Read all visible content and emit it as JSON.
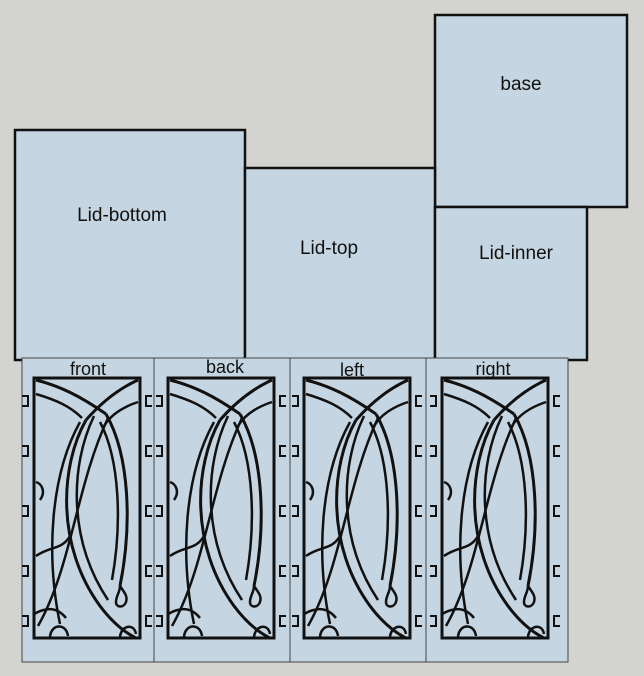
{
  "colors": {
    "background": "#d3d3cf",
    "panel_fill": "#c5d6e2",
    "outline": "#111111"
  },
  "panels": {
    "base": "base",
    "lid_bottom": "Lid-bottom",
    "lid_top": "Lid-top",
    "lid_inner": "Lid-inner",
    "front": "front",
    "back": "back",
    "left": "left",
    "right": "right"
  }
}
